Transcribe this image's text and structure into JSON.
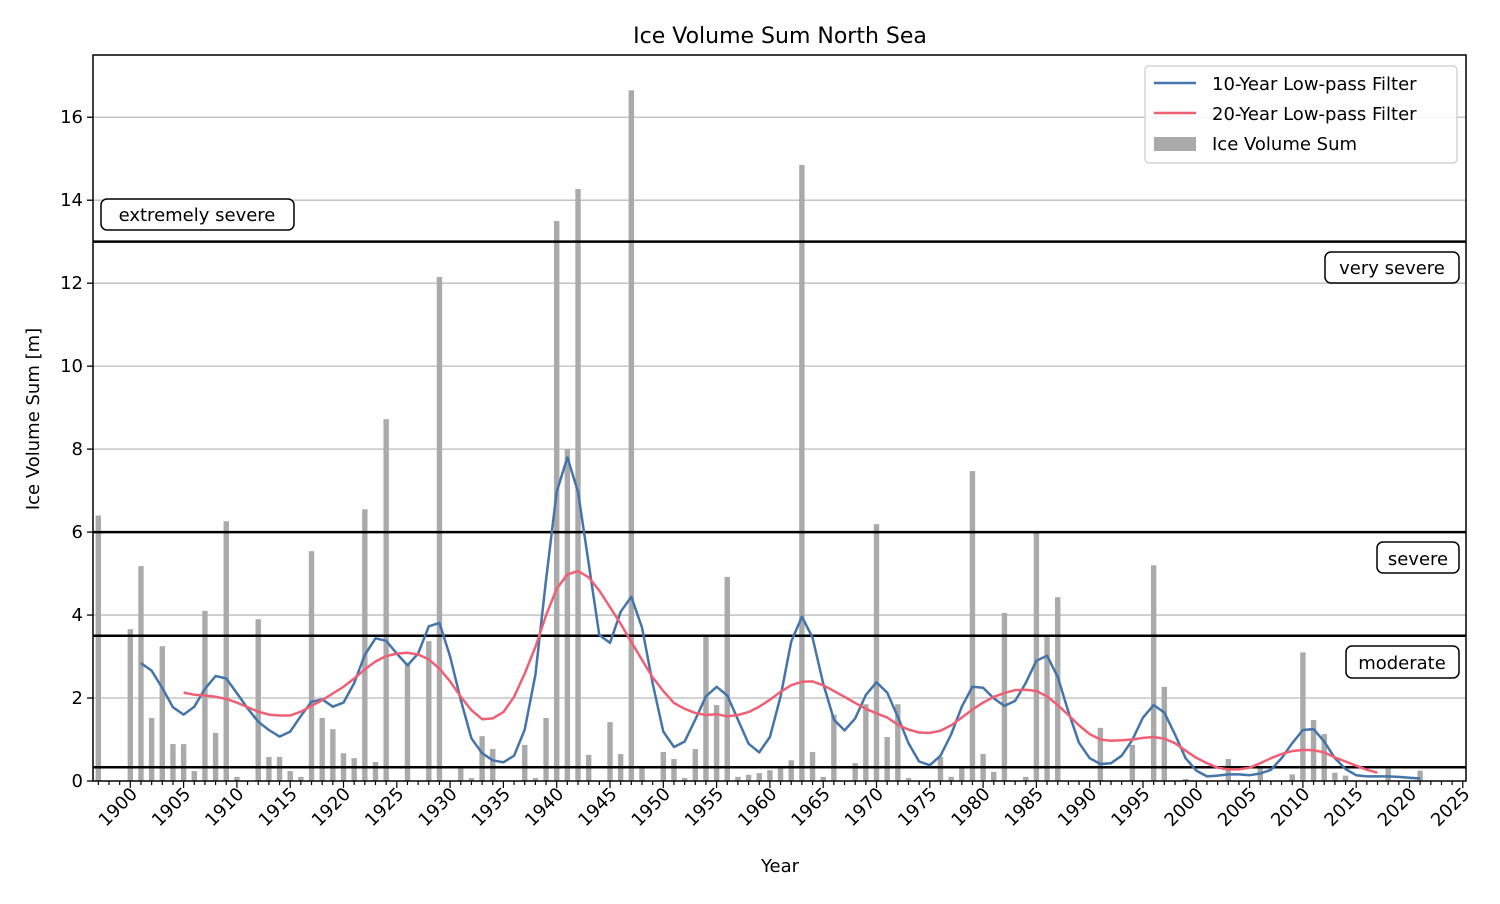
{
  "chart_data": {
    "type": "bar+line",
    "title": "Ice Volume Sum North Sea",
    "xlabel": "Year",
    "ylabel": "Ice Volume Sum [m]",
    "xlim": [
      1896.5,
      2025.3
    ],
    "ylim": [
      0,
      17.5
    ],
    "xticks": [
      1900,
      1905,
      1910,
      1915,
      1920,
      1925,
      1930,
      1935,
      1940,
      1945,
      1950,
      1955,
      1960,
      1965,
      1970,
      1975,
      1980,
      1985,
      1990,
      1995,
      2000,
      2005,
      2010,
      2015,
      2020,
      2025
    ],
    "yticks": [
      0,
      2,
      4,
      6,
      8,
      10,
      12,
      14,
      16
    ],
    "grid": "horizontal",
    "legend_position": "top-right",
    "colors": {
      "bars": "#aaaaaa",
      "lowpass10": "#4474aa",
      "lowpass20": "#ef6075",
      "thresholds": "#000000",
      "grid": "#bbbbbb"
    },
    "thresholds": [
      {
        "value": 0.33,
        "label": ""
      },
      {
        "value": 3.5,
        "label": "moderate"
      },
      {
        "value": 6,
        "label": "severe"
      },
      {
        "value": 13,
        "label": "very severe"
      },
      {
        "value": 13,
        "label": "extremely severe"
      }
    ],
    "bars": {
      "name": "Ice Volume Sum",
      "x": [
        1897,
        1900,
        1901,
        1902,
        1903,
        1904,
        1905,
        1906,
        1907,
        1908,
        1909,
        1910,
        1912,
        1913,
        1914,
        1915,
        1916,
        1917,
        1918,
        1919,
        1920,
        1921,
        1922,
        1923,
        1924,
        1926,
        1928,
        1929,
        1931,
        1932,
        1933,
        1934,
        1937,
        1938,
        1939,
        1940,
        1941,
        1942,
        1943,
        1945,
        1946,
        1947,
        1948,
        1950,
        1951,
        1952,
        1953,
        1954,
        1955,
        1956,
        1957,
        1958,
        1959,
        1960,
        1961,
        1962,
        1963,
        1964,
        1965,
        1966,
        1968,
        1969,
        1970,
        1971,
        1972,
        1973,
        1976,
        1977,
        1978,
        1979,
        1980,
        1981,
        1982,
        1984,
        1985,
        1986,
        1987,
        1991,
        1994,
        1996,
        1997,
        1999,
        2003,
        2006,
        2009,
        2010,
        2011,
        2012,
        2013,
        2014,
        2018,
        2021
      ],
      "y": [
        6.4,
        3.66,
        5.18,
        1.52,
        3.25,
        0.89,
        0.89,
        0.24,
        4.1,
        1.16,
        6.26,
        0.1,
        3.9,
        0.58,
        0.58,
        0.24,
        0.1,
        5.54,
        1.52,
        1.25,
        0.67,
        0.55,
        6.55,
        0.46,
        8.72,
        2.85,
        3.37,
        12.15,
        0.3,
        0.07,
        1.08,
        0.77,
        0.87,
        0.07,
        1.52,
        13.5,
        8.0,
        14.27,
        0.63,
        1.42,
        0.65,
        16.65,
        0.33,
        0.7,
        0.53,
        0.07,
        0.77,
        3.5,
        1.83,
        4.92,
        0.1,
        0.15,
        0.19,
        0.26,
        0.36,
        0.5,
        14.85,
        0.7,
        0.1,
        1.6,
        0.43,
        1.85,
        6.19,
        1.06,
        1.85,
        0.07,
        0.58,
        0.1,
        0.33,
        7.47,
        0.65,
        0.22,
        4.05,
        0.1,
        5.98,
        3.52,
        4.43,
        1.28,
        0.87,
        5.2,
        2.27,
        0.05,
        0.53,
        0.3,
        0.16,
        3.1,
        1.47,
        1.13,
        0.2,
        0.13,
        0.3,
        0.25
      ]
    },
    "series": [
      {
        "name": "10-Year Low-pass Filter",
        "x_start": 1901,
        "y": [
          2.84,
          2.66,
          2.24,
          1.78,
          1.6,
          1.79,
          2.22,
          2.53,
          2.47,
          2.12,
          1.75,
          1.43,
          1.23,
          1.07,
          1.19,
          1.57,
          1.91,
          1.97,
          1.79,
          1.89,
          2.36,
          3.04,
          3.44,
          3.38,
          3.07,
          2.79,
          3.07,
          3.73,
          3.81,
          3.0,
          1.95,
          1.03,
          0.67,
          0.5,
          0.45,
          0.61,
          1.24,
          2.56,
          4.84,
          6.97,
          7.8,
          6.97,
          5.24,
          3.52,
          3.33,
          4.08,
          4.44,
          3.7,
          2.36,
          1.19,
          0.82,
          0.95,
          1.48,
          2.04,
          2.27,
          2.06,
          1.48,
          0.9,
          0.69,
          1.06,
          2.04,
          3.36,
          3.96,
          3.46,
          2.35,
          1.48,
          1.22,
          1.51,
          2.07,
          2.38,
          2.13,
          1.55,
          0.91,
          0.47,
          0.38,
          0.61,
          1.12,
          1.79,
          2.27,
          2.25,
          1.99,
          1.81,
          1.93,
          2.36,
          2.9,
          3.02,
          2.51,
          1.67,
          0.92,
          0.55,
          0.41,
          0.43,
          0.61,
          0.99,
          1.53,
          1.83,
          1.65,
          1.12,
          0.55,
          0.25,
          0.11,
          0.13,
          0.16,
          0.16,
          0.14,
          0.18,
          0.27,
          0.55,
          0.91,
          1.23,
          1.25,
          0.95,
          0.55,
          0.29,
          0.14,
          0.11,
          0.11,
          0.11,
          0.1,
          0.08,
          0.06
        ]
      },
      {
        "name": "20-Year Low-pass Filter",
        "x_start": 1905,
        "y": [
          2.13,
          2.08,
          2.06,
          2.03,
          1.98,
          1.89,
          1.78,
          1.67,
          1.6,
          1.58,
          1.58,
          1.67,
          1.81,
          1.95,
          2.11,
          2.27,
          2.47,
          2.69,
          2.88,
          3.01,
          3.07,
          3.09,
          3.05,
          2.93,
          2.71,
          2.4,
          2.03,
          1.71,
          1.49,
          1.51,
          1.66,
          2.03,
          2.59,
          3.23,
          3.99,
          4.63,
          4.98,
          5.06,
          4.91,
          4.59,
          4.19,
          3.79,
          3.35,
          2.92,
          2.5,
          2.17,
          1.88,
          1.74,
          1.64,
          1.59,
          1.61,
          1.56,
          1.59,
          1.66,
          1.79,
          1.96,
          2.15,
          2.31,
          2.39,
          2.4,
          2.31,
          2.17,
          2.03,
          1.88,
          1.74,
          1.63,
          1.53,
          1.36,
          1.24,
          1.17,
          1.16,
          1.21,
          1.34,
          1.53,
          1.72,
          1.89,
          2.03,
          2.12,
          2.19,
          2.2,
          2.17,
          2.04,
          1.83,
          1.59,
          1.34,
          1.13,
          1.0,
          0.97,
          0.98,
          1.0,
          1.04,
          1.06,
          1.02,
          0.91,
          0.73,
          0.56,
          0.43,
          0.32,
          0.28,
          0.28,
          0.32,
          0.43,
          0.55,
          0.65,
          0.72,
          0.75,
          0.74,
          0.69,
          0.57,
          0.47,
          0.37,
          0.27,
          0.2
        ]
      }
    ]
  }
}
